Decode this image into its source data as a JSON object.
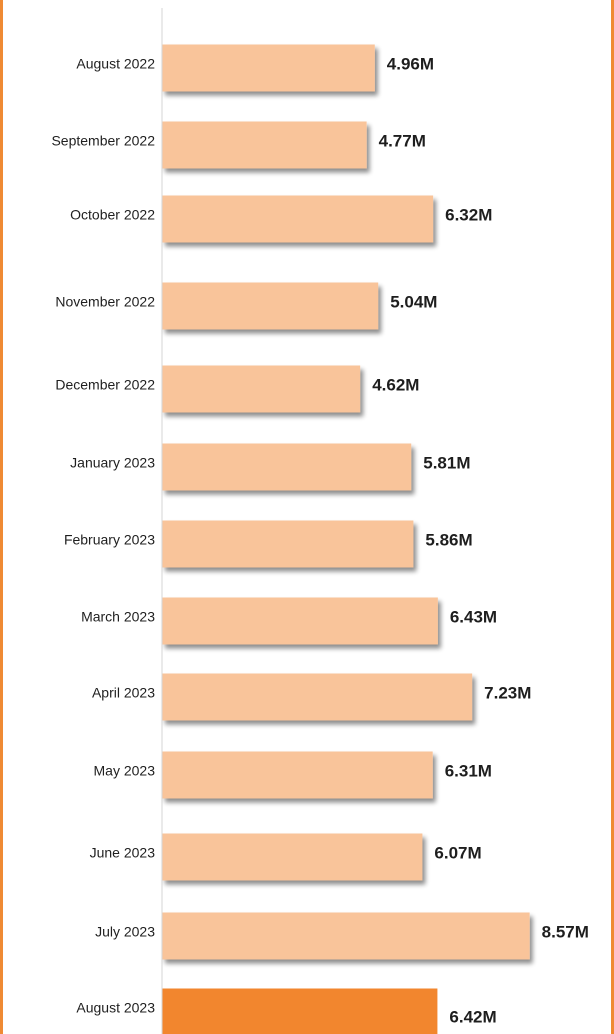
{
  "colors": {
    "bar": "#f9c49a",
    "bar_highlight": "#f2862e",
    "frame": "#ef8a34",
    "axis": "#d6d6d6",
    "shadow": "#8a8a8a"
  },
  "chart_data": {
    "type": "bar",
    "orientation": "horizontal",
    "title": "",
    "xlabel": "",
    "ylabel": "",
    "grid": false,
    "legend": "none",
    "categories": [
      "August 2022",
      "September 2022",
      "October 2022",
      "November 2022",
      "December 2022",
      "January 2023",
      "February 2023",
      "March 2023",
      "April 2023",
      "May 2023",
      "June 2023",
      "July 2023",
      "August 2023"
    ],
    "values": [
      4.96,
      4.77,
      6.32,
      5.04,
      4.62,
      5.81,
      5.86,
      6.43,
      7.23,
      6.31,
      6.07,
      8.57,
      6.42
    ],
    "value_labels": [
      "4.96M",
      "4.77M",
      "6.32M",
      "5.04M",
      "4.62M",
      "5.81M",
      "5.86M",
      "6.43M",
      "7.23M",
      "6.31M",
      "6.07M",
      "8.57M",
      "6.42M"
    ],
    "unit": "M",
    "highlight": [
      "August 2023"
    ]
  }
}
